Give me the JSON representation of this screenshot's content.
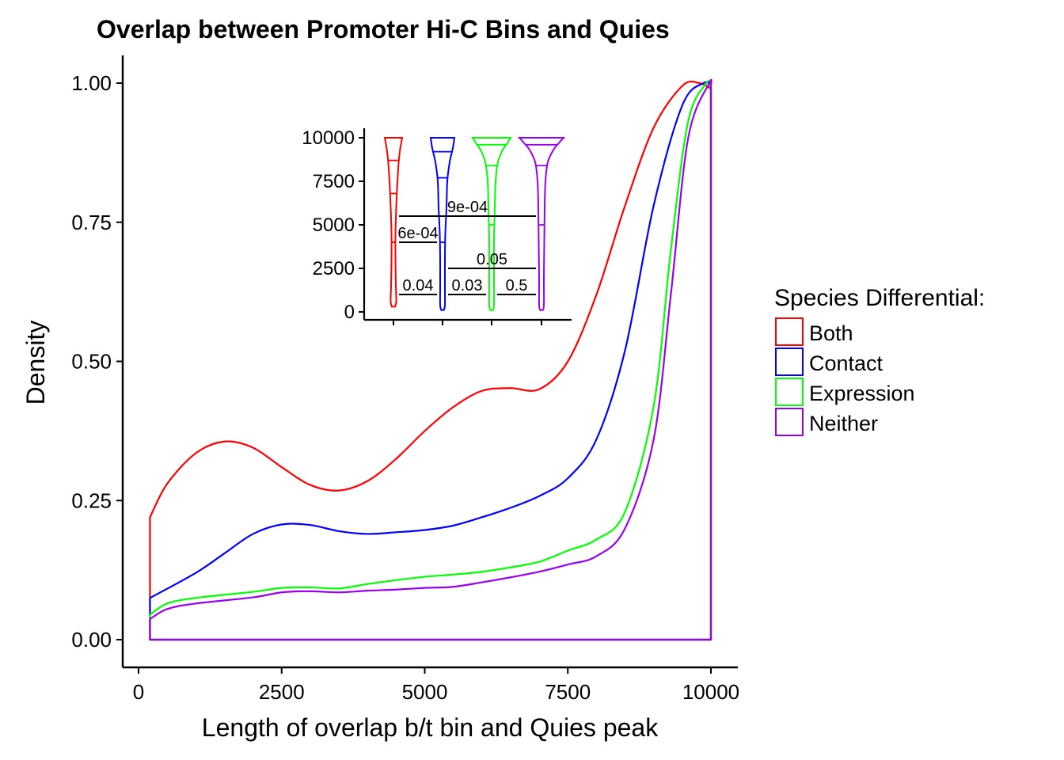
{
  "chart_data": {
    "type": "line",
    "title": "Overlap between Promoter Hi-C Bins and Quies",
    "xlabel": "Length of overlap b/t bin and Quies peak",
    "ylabel": "Density",
    "xlim": [
      -300,
      10500
    ],
    "ylim": [
      -0.05,
      1.05
    ],
    "x_ticks": [
      0,
      2500,
      5000,
      7500,
      10000
    ],
    "x_tick_labels": [
      "0",
      "2500",
      "5000",
      "7500",
      "10000"
    ],
    "y_ticks": [
      0,
      0.25,
      0.5,
      0.75,
      1.0
    ],
    "y_tick_labels": [
      "0.00",
      "0.25",
      "0.50",
      "0.75",
      "1.00"
    ],
    "grid": false,
    "legend": {
      "title": "Species Differential:",
      "placement": "right",
      "entries": [
        "Both",
        "Contact",
        "Expression",
        "Neither"
      ]
    },
    "series": [
      {
        "name": "Both",
        "color": "#ff0000",
        "points": [
          [
            200,
            0.22
          ],
          [
            500,
            0.28
          ],
          [
            1000,
            0.335
          ],
          [
            1500,
            0.356
          ],
          [
            2000,
            0.345
          ],
          [
            2500,
            0.31
          ],
          [
            3000,
            0.278
          ],
          [
            3500,
            0.268
          ],
          [
            4000,
            0.285
          ],
          [
            4500,
            0.325
          ],
          [
            5000,
            0.375
          ],
          [
            5500,
            0.418
          ],
          [
            6000,
            0.447
          ],
          [
            6500,
            0.452
          ],
          [
            7000,
            0.45
          ],
          [
            7500,
            0.5
          ],
          [
            8000,
            0.62
          ],
          [
            8500,
            0.78
          ],
          [
            9000,
            0.92
          ],
          [
            9500,
            0.995
          ],
          [
            9800,
            1.0
          ],
          [
            10000,
            0.99
          ]
        ]
      },
      {
        "name": "Contact",
        "color": "#0000ff",
        "points": [
          [
            200,
            0.075
          ],
          [
            1000,
            0.12
          ],
          [
            1500,
            0.155
          ],
          [
            2000,
            0.19
          ],
          [
            2500,
            0.207
          ],
          [
            3000,
            0.206
          ],
          [
            3500,
            0.195
          ],
          [
            4000,
            0.19
          ],
          [
            4500,
            0.193
          ],
          [
            5000,
            0.197
          ],
          [
            5500,
            0.205
          ],
          [
            6000,
            0.22
          ],
          [
            6500,
            0.237
          ],
          [
            7000,
            0.258
          ],
          [
            7500,
            0.29
          ],
          [
            8000,
            0.36
          ],
          [
            8500,
            0.52
          ],
          [
            9000,
            0.78
          ],
          [
            9500,
            0.96
          ],
          [
            9870,
            1.0
          ],
          [
            10000,
            0.995
          ]
        ]
      },
      {
        "name": "Expression",
        "color": "#00ff00",
        "points": [
          [
            200,
            0.045
          ],
          [
            500,
            0.065
          ],
          [
            1000,
            0.075
          ],
          [
            2000,
            0.086
          ],
          [
            2500,
            0.093
          ],
          [
            3000,
            0.094
          ],
          [
            3500,
            0.092
          ],
          [
            4000,
            0.1
          ],
          [
            4500,
            0.107
          ],
          [
            5000,
            0.113
          ],
          [
            5500,
            0.117
          ],
          [
            6000,
            0.122
          ],
          [
            6500,
            0.13
          ],
          [
            7000,
            0.14
          ],
          [
            7500,
            0.16
          ],
          [
            8000,
            0.18
          ],
          [
            8500,
            0.23
          ],
          [
            9000,
            0.42
          ],
          [
            9300,
            0.7
          ],
          [
            9600,
            0.93
          ],
          [
            9920,
            1.0
          ],
          [
            10000,
            0.995
          ]
        ]
      },
      {
        "name": "Neither",
        "color": "#9900ee",
        "points": [
          [
            200,
            0.037
          ],
          [
            500,
            0.055
          ],
          [
            1000,
            0.065
          ],
          [
            2000,
            0.076
          ],
          [
            2500,
            0.085
          ],
          [
            3000,
            0.087
          ],
          [
            3500,
            0.085
          ],
          [
            4000,
            0.088
          ],
          [
            4500,
            0.09
          ],
          [
            5000,
            0.093
          ],
          [
            5500,
            0.095
          ],
          [
            6000,
            0.103
          ],
          [
            6500,
            0.112
          ],
          [
            7000,
            0.122
          ],
          [
            7500,
            0.135
          ],
          [
            8000,
            0.15
          ],
          [
            8500,
            0.2
          ],
          [
            9000,
            0.36
          ],
          [
            9300,
            0.62
          ],
          [
            9600,
            0.9
          ],
          [
            9970,
            1.0
          ],
          [
            10000,
            0.995
          ]
        ]
      }
    ],
    "inset": {
      "type": "violin",
      "y_ticks": [
        0,
        2500,
        5000,
        7500,
        10000
      ],
      "y_tick_labels": [
        "0",
        "2500",
        "5000",
        "7500",
        "10000"
      ],
      "ylim": [
        -500,
        10500
      ],
      "groups": [
        "Both",
        "Contact",
        "Expression",
        "Neither"
      ],
      "medians": [
        8700,
        9200,
        9600,
        9600
      ],
      "comparisons": [
        {
          "from": 1,
          "to": 4,
          "y": 5500,
          "label": "9e-04"
        },
        {
          "from": 1,
          "to": 2,
          "y": 4000,
          "label": "6e-04"
        },
        {
          "from": 2,
          "to": 4,
          "y": 2500,
          "label": "0.05"
        },
        {
          "from": 1,
          "to": 2,
          "y": 1000,
          "label": "0.04"
        },
        {
          "from": 2,
          "to": 3,
          "y": 1000,
          "label": "0.03"
        },
        {
          "from": 3,
          "to": 4,
          "y": 1000,
          "label": "0.5"
        }
      ]
    }
  }
}
